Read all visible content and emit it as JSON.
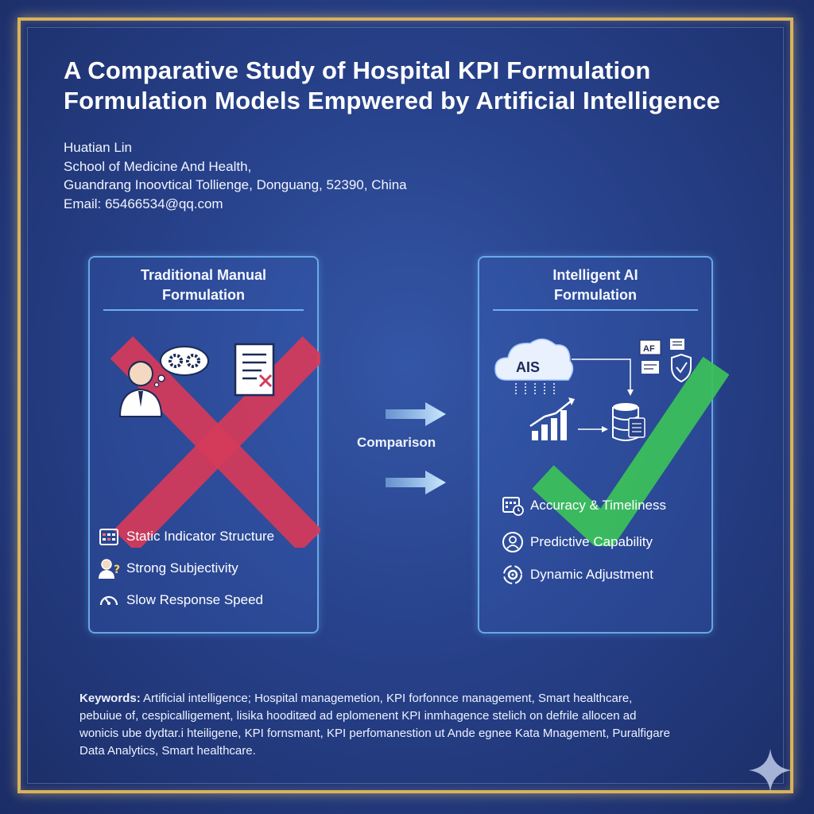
{
  "title": {
    "line1": "A Comparative Study of Hospital KPI Formulation",
    "line2": "Formulation Models Empwered by Artificial Intelligence"
  },
  "author": {
    "name": "Huatian Lin",
    "affiliation": "School of Medicine And Health,",
    "institution": "Guandrang Inoovtical Tollienge, Donguang, 52390, China",
    "email": "Email: 65466534@qq.com"
  },
  "left_panel": {
    "title_line1": "Traditional Manual",
    "title_line2": "Formulation",
    "features": [
      {
        "label": "Static Indicator Structure",
        "icon": "calendar-grid-icon"
      },
      {
        "label": "Strong Subjectivity",
        "icon": "person-question-icon"
      },
      {
        "label": "Slow Response Speed",
        "icon": "speedometer-icon"
      }
    ],
    "mark": "red-cross",
    "colors": {
      "mark": "#d63a5a"
    }
  },
  "right_panel": {
    "title_line1": "Intelligent AI",
    "title_line2": "Formulation",
    "cloud_label": "AIS",
    "doc_label": "AF",
    "features": [
      {
        "label": "Accuracy & Timeliness",
        "icon": "calendar-clock-icon"
      },
      {
        "label": "Predictive Capability",
        "icon": "person-target-icon"
      },
      {
        "label": "Dynamic Adjustment",
        "icon": "gear-cycle-icon"
      }
    ],
    "mark": "green-check",
    "colors": {
      "mark": "#3cc25a"
    }
  },
  "middle": {
    "label": "Comparison"
  },
  "keywords": {
    "label": "Keywords:",
    "line1": " Artificial intelligence; Hospital managemetion, KPI forfonnce management, Smart healthcare,",
    "line2": "pebuiue of, cespicalligement, lisika hooditæd ad eplomenent KPI inmhagence stelich on defrile allocen ad",
    "line3": "wonicis ube dydtar.i hteiligene, KPI fornsmant, KPI perfomanestion ut Ande egnee Kata Mnagement, Puralfigare",
    "line4": "Data Analytics, Smart healthcare."
  },
  "colors": {
    "frame": "#d9b25c",
    "panel_border": "#7dc8ff",
    "background": "#27418a"
  }
}
